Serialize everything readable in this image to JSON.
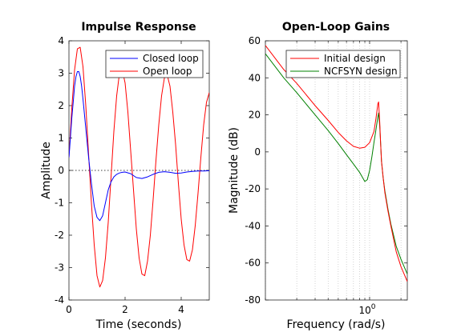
{
  "chart_data": [
    {
      "type": "line",
      "title": "Impulse Response",
      "xlabel": "Time (seconds)",
      "ylabel": "Amplitude",
      "xlim": [
        0,
        5
      ],
      "ylim": [
        -4,
        4
      ],
      "xticks": [
        "0",
        "2",
        "4"
      ],
      "yticks": [
        "-4",
        "-3",
        "-2",
        "-1",
        "0",
        "1",
        "2",
        "3",
        "4"
      ],
      "grid": false,
      "legend_position": "top-right",
      "zero_line": "dotted",
      "series": [
        {
          "name": "Closed loop",
          "color": "#0000ff",
          "x": [
            0,
            0.05,
            0.1,
            0.15,
            0.2,
            0.25,
            0.3,
            0.35,
            0.4,
            0.45,
            0.5,
            0.6,
            0.7,
            0.8,
            0.9,
            1.0,
            1.1,
            1.2,
            1.3,
            1.4,
            1.5,
            1.6,
            1.7,
            1.8,
            1.9,
            2.0,
            2.2,
            2.4,
            2.6,
            2.8,
            3.0,
            3.2,
            3.4,
            3.6,
            3.8,
            4.0,
            4.2,
            4.4,
            4.6,
            4.8,
            5.0
          ],
          "y": [
            0.4,
            1.0,
            1.6,
            2.1,
            2.6,
            2.9,
            3.05,
            3.05,
            2.9,
            2.6,
            2.2,
            1.3,
            0.4,
            -0.4,
            -1.1,
            -1.45,
            -1.55,
            -1.4,
            -1.0,
            -0.6,
            -0.35,
            -0.2,
            -0.12,
            -0.08,
            -0.06,
            -0.05,
            -0.1,
            -0.22,
            -0.25,
            -0.2,
            -0.12,
            -0.06,
            -0.04,
            -0.06,
            -0.09,
            -0.08,
            -0.05,
            -0.03,
            -0.02,
            -0.02,
            -0.01
          ]
        },
        {
          "name": "Open loop",
          "color": "#ff0000",
          "x": [
            0,
            0.1,
            0.2,
            0.3,
            0.4,
            0.5,
            0.6,
            0.7,
            0.8,
            0.9,
            1.0,
            1.1,
            1.2,
            1.3,
            1.4,
            1.5,
            1.6,
            1.7,
            1.8,
            1.9,
            2.0,
            2.1,
            2.2,
            2.3,
            2.4,
            2.5,
            2.6,
            2.7,
            2.8,
            2.9,
            3.0,
            3.1,
            3.2,
            3.3,
            3.4,
            3.5,
            3.6,
            3.7,
            3.8,
            3.9,
            4.0,
            4.1,
            4.2,
            4.3,
            4.4,
            4.5,
            4.6,
            4.7,
            4.8,
            4.9,
            5.0
          ],
          "y": [
            0.4,
            1.9,
            3.1,
            3.75,
            3.8,
            3.2,
            2.0,
            0.5,
            -1.0,
            -2.3,
            -3.25,
            -3.6,
            -3.4,
            -2.7,
            -1.6,
            -0.2,
            1.2,
            2.3,
            3.0,
            3.1,
            2.7,
            1.8,
            0.6,
            -0.6,
            -1.8,
            -2.7,
            -3.2,
            -3.25,
            -2.8,
            -2.0,
            -0.9,
            0.3,
            1.4,
            2.3,
            2.85,
            2.95,
            2.6,
            1.8,
            0.8,
            -0.4,
            -1.5,
            -2.3,
            -2.75,
            -2.8,
            -2.45,
            -1.7,
            -0.7,
            0.4,
            1.4,
            2.1,
            2.4
          ]
        }
      ]
    },
    {
      "type": "line",
      "title": "Open-Loop Gains",
      "xlabel": "Frequency  (rad/s)",
      "ylabel": "Magnitude (dB)",
      "xscale": "log",
      "xlim": [
        0.1,
        2.3
      ],
      "ylim": [
        -80,
        60
      ],
      "xticks": [
        "10^0"
      ],
      "yticks": [
        "-80",
        "-60",
        "-40",
        "-20",
        "0",
        "20",
        "40",
        "60"
      ],
      "grid": "vertical-dotted",
      "legend_position": "top-right",
      "series": [
        {
          "name": "Initial design",
          "color": "#ff0000",
          "x": [
            0.1,
            0.15,
            0.2,
            0.3,
            0.4,
            0.5,
            0.6,
            0.7,
            0.8,
            0.9,
            1.0,
            1.1,
            1.15,
            1.2,
            1.22,
            1.25,
            1.28,
            1.3,
            1.35,
            1.4,
            1.5,
            1.6,
            1.8,
            2.0,
            2.3
          ],
          "y": [
            57.5,
            44.5,
            37,
            25,
            17,
            10.5,
            6,
            3,
            2,
            2.5,
            5,
            11,
            18,
            26,
            27,
            16,
            3,
            -5,
            -14,
            -22,
            -32,
            -40,
            -54,
            -62,
            -70
          ]
        },
        {
          "name": "NCFSYN design",
          "color": "#008000",
          "x": [
            0.1,
            0.15,
            0.2,
            0.3,
            0.4,
            0.5,
            0.6,
            0.7,
            0.8,
            0.9,
            0.95,
            1.0,
            1.05,
            1.1,
            1.15,
            1.2,
            1.22,
            1.25,
            1.28,
            1.3,
            1.35,
            1.4,
            1.5,
            1.6,
            1.8,
            2.0,
            2.3
          ],
          "y": [
            53,
            40,
            32,
            20,
            11.5,
            4.5,
            -1.5,
            -6.5,
            -11,
            -16,
            -15,
            -10,
            -3,
            5,
            12,
            19,
            21,
            14,
            3,
            -5,
            -14,
            -21,
            -31,
            -39,
            -51,
            -58,
            -66
          ]
        }
      ]
    }
  ]
}
